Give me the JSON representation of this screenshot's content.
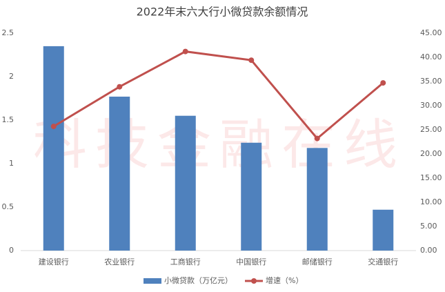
{
  "chart_data": {
    "type": "bar",
    "title": "2022年末六大行小微贷款余额情况",
    "watermark": "科技金融在线",
    "categories": [
      "建设银行",
      "农业银行",
      "工商银行",
      "中国银行",
      "邮储银行",
      "交通银行"
    ],
    "series": [
      {
        "name": "小微贷款（万亿元）",
        "type": "bar",
        "color": "#4f81bd",
        "values": [
          2.35,
          1.77,
          1.55,
          1.24,
          1.18,
          0.47
        ]
      },
      {
        "name": "增速（%）",
        "type": "line",
        "axis": "y2",
        "color": "#c0504d",
        "values": [
          25.7,
          33.9,
          41.2,
          39.4,
          23.2,
          34.7
        ]
      }
    ],
    "ylim": [
      0,
      2.5
    ],
    "yticks": [
      0,
      0.5,
      1,
      1.5,
      2,
      2.5
    ],
    "y2lim": [
      0,
      45
    ],
    "y2ticks": [
      {
        "value": 0,
        "label": "0.00"
      },
      {
        "value": 5,
        "label": "5.00"
      },
      {
        "value": 10,
        "label": "10.00"
      },
      {
        "value": 15,
        "label": "15.00"
      },
      {
        "value": 20,
        "label": "20.00"
      },
      {
        "value": 25,
        "label": "25.00"
      },
      {
        "value": 30,
        "label": "30.00"
      },
      {
        "value": 35,
        "label": "35.00"
      },
      {
        "value": 40,
        "label": "40.00"
      },
      {
        "value": 45,
        "label": "45.00"
      }
    ],
    "grid": false,
    "legend": "bottom"
  }
}
